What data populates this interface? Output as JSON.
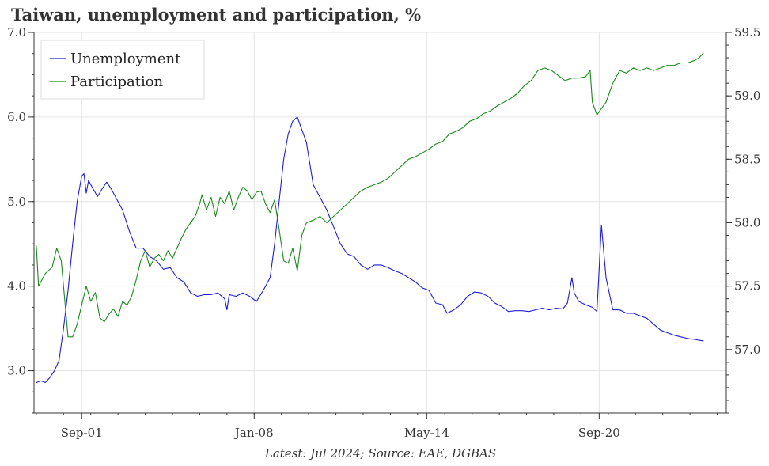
{
  "chart_data": {
    "type": "line",
    "title": "Taiwan, unemployment and participation, %",
    "footer": "Latest: Jul 2024; Source: EAE, DGBAS",
    "x_range": [
      "1999-12",
      "2025-05"
    ],
    "x_ticks": [
      {
        "date": "2001-09",
        "label": "Sep-01"
      },
      {
        "date": "2008-01",
        "label": "Jan-08"
      },
      {
        "date": "2014-05",
        "label": "May-14"
      },
      {
        "date": "2020-09",
        "label": "Sep-20"
      }
    ],
    "y_left": {
      "min": 2.5,
      "max": 7.0,
      "ticks": [
        "3.0",
        "4.0",
        "5.0",
        "6.0",
        "7.0"
      ]
    },
    "y_right": {
      "min": 56.5,
      "max": 59.5,
      "ticks": [
        "57.0",
        "57.5",
        "58.0",
        "58.5",
        "59.0",
        "59.5"
      ]
    },
    "grid": true,
    "legend": "top-left",
    "series": [
      {
        "name": "Unemployment",
        "axis": "left",
        "color": "#1f1fd6",
        "points": [
          [
            "2000-01",
            2.86
          ],
          [
            "2000-03",
            2.88
          ],
          [
            "2000-05",
            2.86
          ],
          [
            "2000-07",
            2.92
          ],
          [
            "2000-09",
            3.0
          ],
          [
            "2000-11",
            3.12
          ],
          [
            "2001-01",
            3.5
          ],
          [
            "2001-03",
            3.95
          ],
          [
            "2001-05",
            4.5
          ],
          [
            "2001-07",
            5.0
          ],
          [
            "2001-09",
            5.3
          ],
          [
            "2001-10",
            5.33
          ],
          [
            "2001-11",
            5.1
          ],
          [
            "2001-12",
            5.25
          ],
          [
            "2002-02",
            5.15
          ],
          [
            "2002-04",
            5.06
          ],
          [
            "2002-06",
            5.15
          ],
          [
            "2002-08",
            5.23
          ],
          [
            "2002-10",
            5.15
          ],
          [
            "2002-12",
            5.05
          ],
          [
            "2003-03",
            4.9
          ],
          [
            "2003-06",
            4.65
          ],
          [
            "2003-09",
            4.45
          ],
          [
            "2003-12",
            4.45
          ],
          [
            "2004-03",
            4.35
          ],
          [
            "2004-06",
            4.3
          ],
          [
            "2004-09",
            4.2
          ],
          [
            "2004-12",
            4.22
          ],
          [
            "2005-03",
            4.1
          ],
          [
            "2005-06",
            4.05
          ],
          [
            "2005-09",
            3.92
          ],
          [
            "2005-12",
            3.88
          ],
          [
            "2006-03",
            3.9
          ],
          [
            "2006-06",
            3.9
          ],
          [
            "2006-09",
            3.92
          ],
          [
            "2006-12",
            3.85
          ],
          [
            "2007-01",
            3.72
          ],
          [
            "2007-02",
            3.9
          ],
          [
            "2007-05",
            3.88
          ],
          [
            "2007-08",
            3.92
          ],
          [
            "2007-11",
            3.88
          ],
          [
            "2008-02",
            3.82
          ],
          [
            "2008-05",
            3.95
          ],
          [
            "2008-08",
            4.1
          ],
          [
            "2008-10",
            4.5
          ],
          [
            "2008-12",
            5.0
          ],
          [
            "2009-02",
            5.5
          ],
          [
            "2009-04",
            5.8
          ],
          [
            "2009-06",
            5.95
          ],
          [
            "2009-08",
            6.0
          ],
          [
            "2009-10",
            5.85
          ],
          [
            "2009-12",
            5.7
          ],
          [
            "2010-03",
            5.2
          ],
          [
            "2010-06",
            5.05
          ],
          [
            "2010-09",
            4.9
          ],
          [
            "2010-12",
            4.7
          ],
          [
            "2011-03",
            4.5
          ],
          [
            "2011-06",
            4.38
          ],
          [
            "2011-09",
            4.35
          ],
          [
            "2011-12",
            4.25
          ],
          [
            "2012-03",
            4.2
          ],
          [
            "2012-06",
            4.25
          ],
          [
            "2012-09",
            4.25
          ],
          [
            "2012-12",
            4.22
          ],
          [
            "2013-03",
            4.18
          ],
          [
            "2013-06",
            4.15
          ],
          [
            "2013-09",
            4.1
          ],
          [
            "2013-12",
            4.05
          ],
          [
            "2014-03",
            3.98
          ],
          [
            "2014-06",
            3.95
          ],
          [
            "2014-09",
            3.8
          ],
          [
            "2014-12",
            3.78
          ],
          [
            "2015-02",
            3.68
          ],
          [
            "2015-05",
            3.72
          ],
          [
            "2015-08",
            3.78
          ],
          [
            "2015-11",
            3.88
          ],
          [
            "2016-02",
            3.93
          ],
          [
            "2016-05",
            3.92
          ],
          [
            "2016-08",
            3.88
          ],
          [
            "2016-11",
            3.8
          ],
          [
            "2017-02",
            3.76
          ],
          [
            "2017-05",
            3.7
          ],
          [
            "2017-08",
            3.71
          ],
          [
            "2017-11",
            3.71
          ],
          [
            "2018-02",
            3.7
          ],
          [
            "2018-05",
            3.72
          ],
          [
            "2018-08",
            3.74
          ],
          [
            "2018-11",
            3.72
          ],
          [
            "2019-02",
            3.74
          ],
          [
            "2019-05",
            3.73
          ],
          [
            "2019-07",
            3.8
          ],
          [
            "2019-09",
            4.1
          ],
          [
            "2019-10",
            3.92
          ],
          [
            "2019-12",
            3.82
          ],
          [
            "2020-03",
            3.78
          ],
          [
            "2020-06",
            3.75
          ],
          [
            "2020-08",
            3.7
          ],
          [
            "2020-10",
            4.72
          ],
          [
            "2020-12",
            4.1
          ],
          [
            "2021-03",
            3.72
          ],
          [
            "2021-06",
            3.72
          ],
          [
            "2021-09",
            3.68
          ],
          [
            "2021-12",
            3.68
          ],
          [
            "2022-03",
            3.65
          ],
          [
            "2022-06",
            3.62
          ],
          [
            "2022-09",
            3.55
          ],
          [
            "2022-12",
            3.48
          ],
          [
            "2023-03",
            3.45
          ],
          [
            "2023-06",
            3.42
          ],
          [
            "2023-09",
            3.4
          ],
          [
            "2023-12",
            3.38
          ],
          [
            "2024-03",
            3.37
          ],
          [
            "2024-07",
            3.35
          ]
        ]
      },
      {
        "name": "Participation",
        "axis": "right",
        "color": "#1a8a1a",
        "points": [
          [
            "2000-01",
            57.82
          ],
          [
            "2000-02",
            57.5
          ],
          [
            "2000-05",
            57.6
          ],
          [
            "2000-08",
            57.65
          ],
          [
            "2000-10",
            57.8
          ],
          [
            "2000-12",
            57.7
          ],
          [
            "2001-03",
            57.1
          ],
          [
            "2001-05",
            57.1
          ],
          [
            "2001-07",
            57.2
          ],
          [
            "2001-09",
            57.35
          ],
          [
            "2001-11",
            57.5
          ],
          [
            "2002-01",
            57.38
          ],
          [
            "2002-03",
            57.45
          ],
          [
            "2002-05",
            57.25
          ],
          [
            "2002-07",
            57.22
          ],
          [
            "2002-09",
            57.28
          ],
          [
            "2002-11",
            57.32
          ],
          [
            "2003-01",
            57.26
          ],
          [
            "2003-03",
            57.38
          ],
          [
            "2003-05",
            57.35
          ],
          [
            "2003-07",
            57.42
          ],
          [
            "2003-09",
            57.55
          ],
          [
            "2003-11",
            57.7
          ],
          [
            "2004-01",
            57.78
          ],
          [
            "2004-03",
            57.65
          ],
          [
            "2004-05",
            57.72
          ],
          [
            "2004-07",
            57.75
          ],
          [
            "2004-09",
            57.7
          ],
          [
            "2004-11",
            57.78
          ],
          [
            "2005-01",
            57.72
          ],
          [
            "2005-03",
            57.8
          ],
          [
            "2005-05",
            57.88
          ],
          [
            "2005-07",
            57.95
          ],
          [
            "2005-09",
            58.0
          ],
          [
            "2005-11",
            58.05
          ],
          [
            "2006-01",
            58.15
          ],
          [
            "2006-02",
            58.22
          ],
          [
            "2006-04",
            58.1
          ],
          [
            "2006-06",
            58.2
          ],
          [
            "2006-08",
            58.05
          ],
          [
            "2006-10",
            58.2
          ],
          [
            "2006-12",
            58.15
          ],
          [
            "2007-02",
            58.25
          ],
          [
            "2007-04",
            58.1
          ],
          [
            "2007-06",
            58.2
          ],
          [
            "2007-08",
            58.28
          ],
          [
            "2007-10",
            58.25
          ],
          [
            "2007-12",
            58.18
          ],
          [
            "2008-02",
            58.24
          ],
          [
            "2008-04",
            58.25
          ],
          [
            "2008-06",
            58.15
          ],
          [
            "2008-08",
            58.08
          ],
          [
            "2008-10",
            58.18
          ],
          [
            "2008-12",
            57.95
          ],
          [
            "2009-02",
            57.7
          ],
          [
            "2009-04",
            57.68
          ],
          [
            "2009-06",
            57.8
          ],
          [
            "2009-08",
            57.62
          ],
          [
            "2009-10",
            57.9
          ],
          [
            "2009-12",
            58.0
          ],
          [
            "2010-03",
            58.02
          ],
          [
            "2010-06",
            58.05
          ],
          [
            "2010-09",
            58.0
          ],
          [
            "2010-12",
            58.05
          ],
          [
            "2011-03",
            58.1
          ],
          [
            "2011-06",
            58.15
          ],
          [
            "2011-09",
            58.2
          ],
          [
            "2011-12",
            58.25
          ],
          [
            "2012-03",
            58.28
          ],
          [
            "2012-06",
            58.3
          ],
          [
            "2012-09",
            58.32
          ],
          [
            "2012-12",
            58.35
          ],
          [
            "2013-03",
            58.4
          ],
          [
            "2013-06",
            58.45
          ],
          [
            "2013-09",
            58.5
          ],
          [
            "2013-12",
            58.52
          ],
          [
            "2014-03",
            58.55
          ],
          [
            "2014-06",
            58.58
          ],
          [
            "2014-09",
            58.62
          ],
          [
            "2014-12",
            58.64
          ],
          [
            "2015-03",
            58.7
          ],
          [
            "2015-06",
            58.72
          ],
          [
            "2015-09",
            58.75
          ],
          [
            "2015-12",
            58.8
          ],
          [
            "2016-03",
            58.82
          ],
          [
            "2016-06",
            58.86
          ],
          [
            "2016-09",
            58.88
          ],
          [
            "2016-12",
            58.92
          ],
          [
            "2017-03",
            58.95
          ],
          [
            "2017-06",
            58.98
          ],
          [
            "2017-09",
            59.02
          ],
          [
            "2017-12",
            59.08
          ],
          [
            "2018-03",
            59.12
          ],
          [
            "2018-06",
            59.2
          ],
          [
            "2018-09",
            59.22
          ],
          [
            "2018-12",
            59.2
          ],
          [
            "2019-03",
            59.16
          ],
          [
            "2019-06",
            59.12
          ],
          [
            "2019-09",
            59.14
          ],
          [
            "2019-12",
            59.14
          ],
          [
            "2020-03",
            59.15
          ],
          [
            "2020-05",
            59.2
          ],
          [
            "2020-06",
            58.95
          ],
          [
            "2020-08",
            58.85
          ],
          [
            "2020-10",
            58.9
          ],
          [
            "2020-12",
            58.95
          ],
          [
            "2021-03",
            59.1
          ],
          [
            "2021-06",
            59.2
          ],
          [
            "2021-09",
            59.18
          ],
          [
            "2021-12",
            59.22
          ],
          [
            "2022-03",
            59.2
          ],
          [
            "2022-06",
            59.22
          ],
          [
            "2022-09",
            59.2
          ],
          [
            "2022-12",
            59.22
          ],
          [
            "2023-03",
            59.24
          ],
          [
            "2023-06",
            59.24
          ],
          [
            "2023-09",
            59.26
          ],
          [
            "2023-12",
            59.26
          ],
          [
            "2024-03",
            59.28
          ],
          [
            "2024-05",
            59.3
          ],
          [
            "2024-07",
            59.34
          ]
        ]
      }
    ]
  }
}
